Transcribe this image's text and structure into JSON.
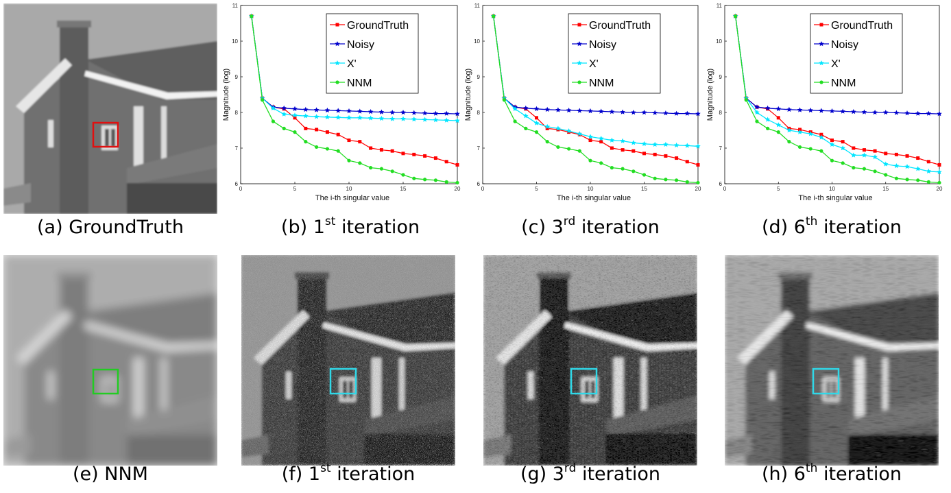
{
  "chart_data": [
    {
      "type": "line",
      "x_label": "The i-th singular value",
      "y_label": "Magnitude (log)",
      "x": [
        1,
        2,
        3,
        4,
        5,
        6,
        7,
        8,
        9,
        10,
        11,
        12,
        13,
        14,
        15,
        16,
        17,
        18,
        19,
        20
      ],
      "xlim": [
        0,
        20
      ],
      "ylim": [
        6,
        11
      ],
      "xticks": [
        0,
        5,
        10,
        15,
        20
      ],
      "yticks": [
        6,
        7,
        8,
        9,
        10,
        11
      ],
      "legend": "upper right",
      "series": [
        {
          "name": "GroundTruth",
          "color": "#ff0000",
          "values": [
            10.7,
            8.4,
            8.15,
            8.1,
            7.85,
            7.55,
            7.52,
            7.45,
            7.38,
            7.22,
            7.18,
            7.0,
            6.95,
            6.92,
            6.85,
            6.82,
            6.78,
            6.72,
            6.62,
            6.53
          ]
        },
        {
          "name": "Noisy",
          "color": "#0000cc",
          "values": [
            10.7,
            8.4,
            8.15,
            8.12,
            8.1,
            8.08,
            8.07,
            8.06,
            8.05,
            8.04,
            8.03,
            8.02,
            8.01,
            8.0,
            8.0,
            7.99,
            7.98,
            7.97,
            7.97,
            7.96
          ]
        },
        {
          "name": "X'",
          "color": "#00e5ff",
          "values": [
            10.7,
            8.4,
            8.12,
            7.95,
            7.92,
            7.9,
            7.88,
            7.87,
            7.86,
            7.85,
            7.85,
            7.84,
            7.83,
            7.82,
            7.82,
            7.81,
            7.8,
            7.79,
            7.78,
            7.77
          ]
        },
        {
          "name": "NNM",
          "color": "#22dd22",
          "values": [
            10.7,
            8.35,
            7.75,
            7.55,
            7.45,
            7.18,
            7.03,
            6.98,
            6.92,
            6.65,
            6.58,
            6.45,
            6.42,
            6.35,
            6.25,
            6.15,
            6.12,
            6.1,
            6.05,
            6.03
          ]
        }
      ]
    },
    {
      "type": "line",
      "x_label": "The i-th singular value",
      "y_label": "Magnitude (log)",
      "x": [
        1,
        2,
        3,
        4,
        5,
        6,
        7,
        8,
        9,
        10,
        11,
        12,
        13,
        14,
        15,
        16,
        17,
        18,
        19,
        20
      ],
      "xlim": [
        0,
        20
      ],
      "ylim": [
        6,
        11
      ],
      "xticks": [
        0,
        5,
        10,
        15,
        20
      ],
      "yticks": [
        6,
        7,
        8,
        9,
        10,
        11
      ],
      "legend": "upper right",
      "series": [
        {
          "name": "GroundTruth",
          "color": "#ff0000",
          "values": [
            10.7,
            8.4,
            8.15,
            8.1,
            7.85,
            7.55,
            7.52,
            7.45,
            7.38,
            7.22,
            7.18,
            7.0,
            6.95,
            6.92,
            6.85,
            6.82,
            6.78,
            6.72,
            6.62,
            6.53
          ]
        },
        {
          "name": "Noisy",
          "color": "#0000cc",
          "values": [
            10.7,
            8.4,
            8.15,
            8.12,
            8.1,
            8.08,
            8.07,
            8.06,
            8.05,
            8.04,
            8.03,
            8.02,
            8.01,
            8.0,
            8.0,
            7.99,
            7.98,
            7.97,
            7.97,
            7.96
          ]
        },
        {
          "name": "X'",
          "color": "#00e5ff",
          "values": [
            10.7,
            8.4,
            8.1,
            7.9,
            7.7,
            7.6,
            7.55,
            7.48,
            7.4,
            7.32,
            7.27,
            7.22,
            7.2,
            7.15,
            7.12,
            7.1,
            7.1,
            7.08,
            7.07,
            7.05
          ]
        },
        {
          "name": "NNM",
          "color": "#22dd22",
          "values": [
            10.7,
            8.35,
            7.75,
            7.55,
            7.45,
            7.18,
            7.03,
            6.98,
            6.92,
            6.65,
            6.58,
            6.45,
            6.42,
            6.35,
            6.25,
            6.15,
            6.12,
            6.1,
            6.05,
            6.03
          ]
        }
      ]
    },
    {
      "type": "line",
      "x_label": "The i-th singular value",
      "y_label": "Magnitude (log)",
      "x": [
        1,
        2,
        3,
        4,
        5,
        6,
        7,
        8,
        9,
        10,
        11,
        12,
        13,
        14,
        15,
        16,
        17,
        18,
        19,
        20
      ],
      "xlim": [
        0,
        20
      ],
      "ylim": [
        6,
        11
      ],
      "xticks": [
        0,
        5,
        10,
        15,
        20
      ],
      "yticks": [
        6,
        7,
        8,
        9,
        10,
        11
      ],
      "legend": "upper right",
      "series": [
        {
          "name": "GroundTruth",
          "color": "#ff0000",
          "values": [
            10.7,
            8.4,
            8.15,
            8.1,
            7.85,
            7.55,
            7.52,
            7.45,
            7.38,
            7.22,
            7.18,
            7.0,
            6.95,
            6.92,
            6.85,
            6.82,
            6.78,
            6.72,
            6.62,
            6.53
          ]
        },
        {
          "name": "Noisy",
          "color": "#0000cc",
          "values": [
            10.7,
            8.4,
            8.15,
            8.12,
            8.1,
            8.08,
            8.07,
            8.06,
            8.05,
            8.04,
            8.03,
            8.02,
            8.01,
            8.0,
            8.0,
            7.99,
            7.98,
            7.97,
            7.97,
            7.96
          ]
        },
        {
          "name": "X'",
          "color": "#00e5ff",
          "values": [
            10.7,
            8.4,
            8.0,
            7.8,
            7.65,
            7.5,
            7.45,
            7.4,
            7.3,
            7.1,
            7.0,
            6.8,
            6.8,
            6.75,
            6.55,
            6.5,
            6.48,
            6.42,
            6.35,
            6.33
          ]
        },
        {
          "name": "NNM",
          "color": "#22dd22",
          "values": [
            10.7,
            8.35,
            7.75,
            7.55,
            7.45,
            7.18,
            7.03,
            6.98,
            6.92,
            6.65,
            6.58,
            6.45,
            6.42,
            6.35,
            6.25,
            6.15,
            6.12,
            6.1,
            6.05,
            6.03
          ]
        }
      ]
    }
  ],
  "captions": [
    {
      "label": "(a) GroundTruth"
    },
    {
      "label": "(b) 1",
      "sup": "st",
      "rest": " iteration"
    },
    {
      "label": "(c) 3",
      "sup": "rd",
      "rest": " iteration"
    },
    {
      "label": "(d) 6",
      "sup": "th",
      "rest": " iteration"
    },
    {
      "label": "(e) NNM"
    },
    {
      "label": "(f) 1",
      "sup": "st",
      "rest": " iteration"
    },
    {
      "label": "(g) 3",
      "sup": "rd",
      "rest": " iteration"
    },
    {
      "label": "(h) 6",
      "sup": "th",
      "rest": " iteration"
    }
  ]
}
